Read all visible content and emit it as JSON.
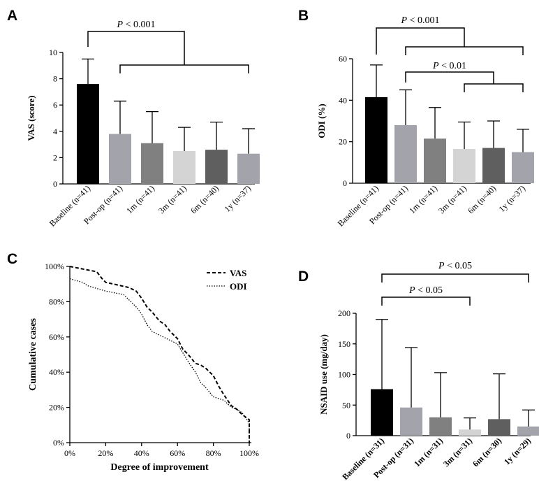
{
  "chart_data": [
    {
      "panel": "A",
      "type": "bar",
      "ylabel": "VAS (score)",
      "ylim": [
        0,
        10
      ],
      "yticks": [
        "0",
        "2",
        "4",
        "6",
        "8",
        "10"
      ],
      "categories": [
        "Baseline (n=41)",
        "Post-op (n=41)",
        "1m (n=41)",
        "3m (n=41)",
        "6m (n=40)",
        "1y (n=37)"
      ],
      "values": [
        7.6,
        3.8,
        3.1,
        2.5,
        2.6,
        2.3
      ],
      "errors": [
        1.9,
        2.5,
        2.4,
        1.8,
        2.1,
        1.9
      ],
      "colors": [
        "#000000",
        "#a3a3ab",
        "#808080",
        "#d4d4d4",
        "#5f5f5f",
        "#a3a3ab"
      ],
      "annotations": [
        {
          "text": "P < 0.001",
          "from": 0,
          "to": [
            1,
            5
          ]
        }
      ]
    },
    {
      "panel": "B",
      "type": "bar",
      "ylabel": "ODI (%)",
      "ylim": [
        0,
        60
      ],
      "yticks": [
        "0",
        "20",
        "40",
        "60"
      ],
      "categories": [
        "Baseline (n=41)",
        "Post-op (n=41)",
        "1m (n=41)",
        "3m (n=41)",
        "6m (n=40)",
        "1y (n=37)"
      ],
      "values": [
        41.5,
        28.0,
        21.5,
        16.5,
        17.0,
        15.0
      ],
      "errors": [
        15.5,
        17.0,
        15.0,
        13.0,
        13.0,
        11.0
      ],
      "colors": [
        "#000000",
        "#a3a3ab",
        "#808080",
        "#d4d4d4",
        "#5f5f5f",
        "#a3a3ab"
      ],
      "annotations": [
        {
          "text": "P < 0.001",
          "from": 0,
          "to": [
            1,
            5
          ]
        },
        {
          "text": "P < 0.01",
          "from": 1,
          "to": [
            3,
            5
          ]
        }
      ]
    },
    {
      "panel": "C",
      "type": "line",
      "xlabel": "Degree of improvement",
      "ylabel": "Cumulative cases",
      "xlim": [
        0,
        100
      ],
      "ylim": [
        0,
        100
      ],
      "xticks": [
        "0%",
        "20%",
        "40%",
        "60%",
        "80%",
        "100%"
      ],
      "yticks": [
        "0%",
        "20%",
        "40%",
        "60%",
        "80%",
        "100%"
      ],
      "series": [
        {
          "name": "VAS",
          "style": "dashed",
          "x": [
            0,
            15,
            18,
            20,
            33,
            37,
            40,
            43,
            46,
            50,
            53,
            56,
            60,
            63,
            66,
            70,
            73,
            76,
            80,
            83,
            86,
            90,
            93,
            96,
            100,
            100
          ],
          "y": [
            100,
            97,
            93,
            91,
            88,
            86,
            82,
            77,
            74,
            69,
            67,
            63,
            59,
            53,
            50,
            45,
            44,
            42,
            38,
            32,
            27,
            21,
            19,
            16,
            13,
            0
          ]
        },
        {
          "name": "ODI",
          "style": "dotted",
          "x": [
            0,
            7,
            10,
            20,
            30,
            33,
            37,
            40,
            43,
            46,
            50,
            56,
            60,
            63,
            66,
            70,
            73,
            76,
            80,
            86,
            90,
            93,
            96,
            100,
            100
          ],
          "y": [
            93,
            91,
            89,
            86,
            84,
            81,
            77,
            73,
            67,
            63,
            61,
            58,
            56,
            51,
            46,
            40,
            34,
            31,
            26,
            24,
            20,
            19,
            17,
            11,
            0
          ]
        }
      ],
      "legend": "top-right"
    },
    {
      "panel": "D",
      "type": "bar",
      "ylabel": "NSAID use (mg/day)",
      "ylim": [
        0,
        200
      ],
      "yticks": [
        "0",
        "50",
        "100",
        "150",
        "200"
      ],
      "categories": [
        "Baseline (n=31)",
        "Post-op (n=31)",
        "1m (n=31)",
        "3m (n=31)",
        "6m (n=30)",
        "1y (n=29)"
      ],
      "values": [
        76,
        46,
        30,
        10,
        27,
        15
      ],
      "errors": [
        114,
        98,
        73,
        19,
        74,
        27
      ],
      "colors": [
        "#000000",
        "#a3a3ab",
        "#808080",
        "#d4d4d4",
        "#5f5f5f",
        "#a3a3ab"
      ],
      "annotations": [
        {
          "text": "P < 0.05",
          "from": 0,
          "to": [
            5
          ]
        },
        {
          "text": "P < 0.05",
          "from": 0,
          "to": [
            3
          ]
        }
      ]
    }
  ],
  "panels": [
    "A",
    "B",
    "C",
    "D"
  ],
  "sig_prefix": "P",
  "sig_suffix": " < 0.001"
}
